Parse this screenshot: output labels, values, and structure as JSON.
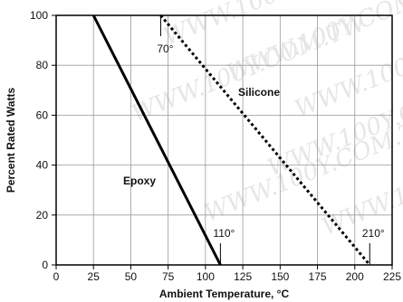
{
  "chart_data": {
    "type": "line",
    "title": "",
    "xlabel": "Ambient Temperature, °C",
    "ylabel": "Percent Rated Watts",
    "xlim": [
      0,
      225
    ],
    "ylim": [
      0,
      100
    ],
    "x_ticks": [
      0,
      25,
      50,
      75,
      100,
      125,
      150,
      175,
      200,
      225
    ],
    "y_ticks": [
      0,
      20,
      40,
      60,
      80,
      100
    ],
    "grid": true,
    "legend": "none",
    "series": [
      {
        "name": "Epoxy",
        "x": [
          25,
          110
        ],
        "y": [
          100,
          0
        ],
        "style": "solid",
        "color": "#000000"
      },
      {
        "name": "Silicone",
        "x": [
          70,
          210
        ],
        "y": [
          100,
          0
        ],
        "style": "dotted",
        "color": "#000000"
      }
    ],
    "annotations": [
      {
        "text": "70°",
        "x": 70,
        "y": 100
      },
      {
        "text": "110°",
        "x": 110,
        "y": 0
      },
      {
        "text": "210°",
        "x": 210,
        "y": 0
      }
    ],
    "watermark": "WWW.100Y.COM.TW"
  }
}
